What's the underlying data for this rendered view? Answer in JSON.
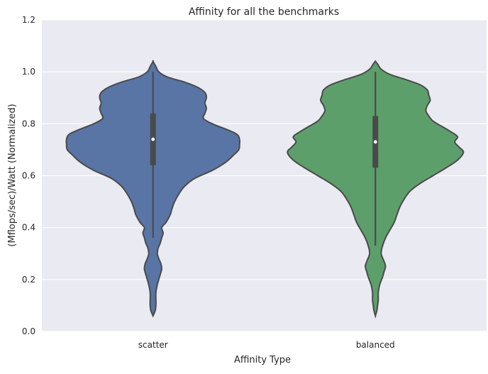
{
  "chart_data": {
    "type": "violin",
    "title": "Affinity for all the benchmarks",
    "xlabel": "Affinity Type",
    "ylabel": "(Mflops/sec)/Watt (Normalized)",
    "ylim": [
      0.0,
      1.2
    ],
    "yticks": [
      "0.0",
      "0.2",
      "0.4",
      "0.6",
      "0.8",
      "1.0",
      "1.2"
    ],
    "grid": true,
    "categories": [
      "scatter",
      "balanced"
    ],
    "series": [
      {
        "category": "scatter",
        "color": "#5875a5",
        "median": 0.74,
        "q1": 0.64,
        "q3": 0.84,
        "whisker_low": 0.36,
        "whisker_high": 1.0,
        "density": [
          [
            0.06,
            0.0
          ],
          [
            0.08,
            0.03
          ],
          [
            0.1,
            0.04
          ],
          [
            0.12,
            0.04
          ],
          [
            0.15,
            0.04
          ],
          [
            0.18,
            0.06
          ],
          [
            0.21,
            0.09
          ],
          [
            0.24,
            0.12
          ],
          [
            0.26,
            0.11
          ],
          [
            0.28,
            0.08
          ],
          [
            0.3,
            0.06
          ],
          [
            0.32,
            0.07
          ],
          [
            0.34,
            0.1
          ],
          [
            0.36,
            0.12
          ],
          [
            0.38,
            0.14
          ],
          [
            0.4,
            0.12
          ],
          [
            0.42,
            0.18
          ],
          [
            0.45,
            0.24
          ],
          [
            0.47,
            0.26
          ],
          [
            0.5,
            0.3
          ],
          [
            0.53,
            0.36
          ],
          [
            0.56,
            0.44
          ],
          [
            0.59,
            0.58
          ],
          [
            0.62,
            0.82
          ],
          [
            0.65,
            1.0
          ],
          [
            0.68,
            1.12
          ],
          [
            0.7,
            1.19
          ],
          [
            0.72,
            1.2
          ],
          [
            0.74,
            1.2
          ],
          [
            0.76,
            1.16
          ],
          [
            0.78,
            1.0
          ],
          [
            0.8,
            0.82
          ],
          [
            0.82,
            0.7
          ],
          [
            0.84,
            0.72
          ],
          [
            0.86,
            0.74
          ],
          [
            0.88,
            0.72
          ],
          [
            0.9,
            0.74
          ],
          [
            0.92,
            0.72
          ],
          [
            0.94,
            0.62
          ],
          [
            0.96,
            0.44
          ],
          [
            0.98,
            0.2
          ],
          [
            1.0,
            0.08
          ],
          [
            1.02,
            0.04
          ],
          [
            1.04,
            0.0
          ]
        ]
      },
      {
        "category": "balanced",
        "color": "#5d9f6b",
        "median": 0.73,
        "q1": 0.63,
        "q3": 0.83,
        "whisker_low": 0.33,
        "whisker_high": 1.0,
        "density": [
          [
            0.06,
            0.0
          ],
          [
            0.08,
            0.02
          ],
          [
            0.1,
            0.03
          ],
          [
            0.12,
            0.04
          ],
          [
            0.15,
            0.04
          ],
          [
            0.18,
            0.06
          ],
          [
            0.21,
            0.1
          ],
          [
            0.23,
            0.12
          ],
          [
            0.25,
            0.14
          ],
          [
            0.27,
            0.12
          ],
          [
            0.3,
            0.08
          ],
          [
            0.33,
            0.1
          ],
          [
            0.36,
            0.14
          ],
          [
            0.39,
            0.2
          ],
          [
            0.42,
            0.26
          ],
          [
            0.45,
            0.3
          ],
          [
            0.48,
            0.34
          ],
          [
            0.51,
            0.4
          ],
          [
            0.54,
            0.48
          ],
          [
            0.57,
            0.62
          ],
          [
            0.6,
            0.8
          ],
          [
            0.63,
            0.98
          ],
          [
            0.66,
            1.14
          ],
          [
            0.69,
            1.22
          ],
          [
            0.71,
            1.16
          ],
          [
            0.73,
            1.1
          ],
          [
            0.75,
            1.14
          ],
          [
            0.77,
            1.04
          ],
          [
            0.79,
            0.92
          ],
          [
            0.81,
            0.8
          ],
          [
            0.83,
            0.74
          ],
          [
            0.85,
            0.7
          ],
          [
            0.87,
            0.72
          ],
          [
            0.89,
            0.76
          ],
          [
            0.91,
            0.74
          ],
          [
            0.93,
            0.72
          ],
          [
            0.95,
            0.62
          ],
          [
            0.97,
            0.42
          ],
          [
            0.99,
            0.2
          ],
          [
            1.01,
            0.08
          ],
          [
            1.03,
            0.03
          ],
          [
            1.04,
            0.0
          ]
        ]
      }
    ]
  }
}
